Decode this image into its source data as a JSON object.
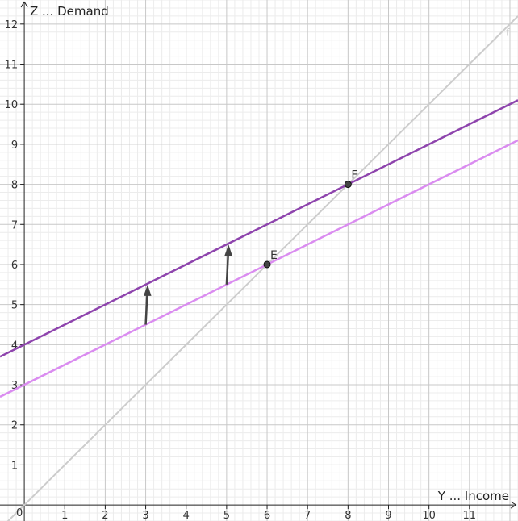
{
  "chart_data": {
    "type": "line",
    "xlabel": "Y ... Income",
    "ylabel": "Z ... Demand",
    "xlim": [
      -0.6,
      12.2
    ],
    "ylim": [
      -0.4,
      12.6
    ],
    "x_ticks": [
      1,
      2,
      3,
      4,
      5,
      6,
      7,
      8,
      9,
      10,
      11
    ],
    "y_ticks": [
      1,
      2,
      3,
      4,
      5,
      6,
      7,
      8,
      9,
      10,
      11,
      12
    ],
    "origin_label": "0",
    "grid": true,
    "minor_grid": true,
    "series": [
      {
        "label": "f",
        "color": "#cccccc",
        "intercept": 0,
        "slope": 1
      },
      {
        "color": "#da8cf0",
        "intercept": 3,
        "slope": 0.5
      },
      {
        "color": "#8e44ad",
        "intercept": 4,
        "slope": 0.5
      }
    ],
    "points": [
      {
        "label": "E",
        "x": 6,
        "y": 6
      },
      {
        "label": "F",
        "x": 8,
        "y": 8
      }
    ],
    "arrows": [
      {
        "x": 3,
        "from": 4.5,
        "to": 5.5
      },
      {
        "x": 5,
        "from": 5.5,
        "to": 6.5
      }
    ],
    "colors": {
      "axis": "#222222",
      "major_grid": "#c8c8c8",
      "minor_grid": "#ececec",
      "arrow": "#444444",
      "point": "#444444"
    }
  }
}
